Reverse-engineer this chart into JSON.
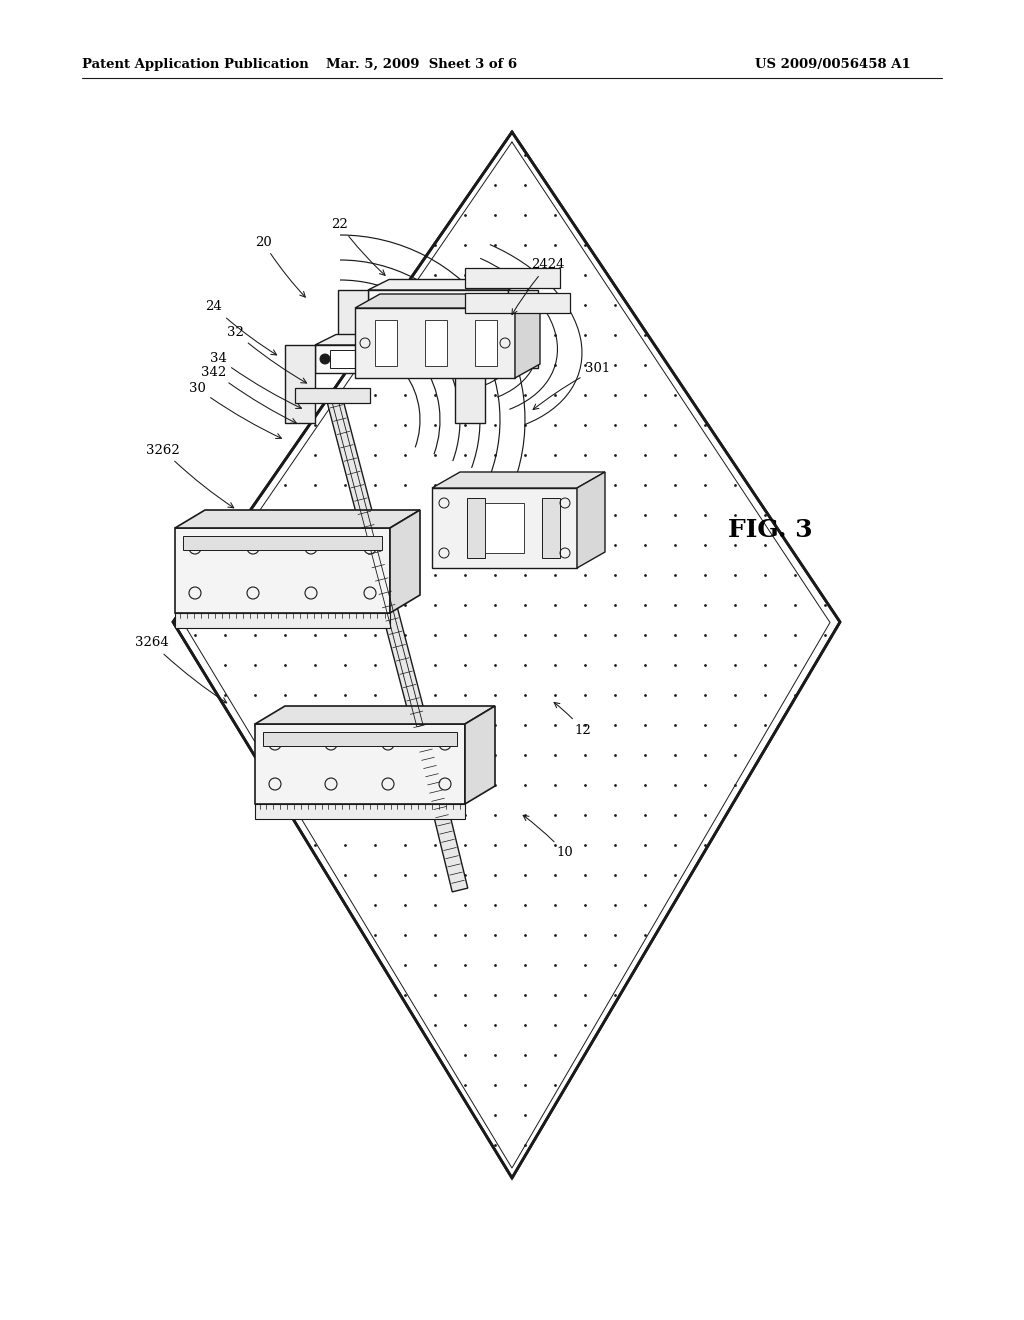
{
  "bg": "#ffffff",
  "lc": "#1a1a1a",
  "header_left": "Patent Application Publication",
  "header_mid": "Mar. 5, 2009  Sheet 3 of 6",
  "header_right": "US 2009/0056458 A1",
  "fig_label": "FIG. 3",
  "annotations": [
    [
      "20",
      263,
      242,
      308,
      300
    ],
    [
      "22",
      340,
      225,
      388,
      278
    ],
    [
      "24",
      214,
      307,
      280,
      357
    ],
    [
      "32",
      235,
      332,
      310,
      385
    ],
    [
      "34",
      218,
      358,
      305,
      410
    ],
    [
      "342",
      214,
      372,
      300,
      425
    ],
    [
      "30",
      197,
      388,
      285,
      440
    ],
    [
      "3262",
      163,
      450,
      237,
      510
    ],
    [
      "3264",
      152,
      643,
      230,
      705
    ],
    [
      "301",
      598,
      368,
      530,
      412
    ],
    [
      "2424",
      548,
      265,
      510,
      318
    ],
    [
      "10",
      565,
      853,
      520,
      813
    ],
    [
      "12",
      583,
      730,
      551,
      700
    ]
  ]
}
